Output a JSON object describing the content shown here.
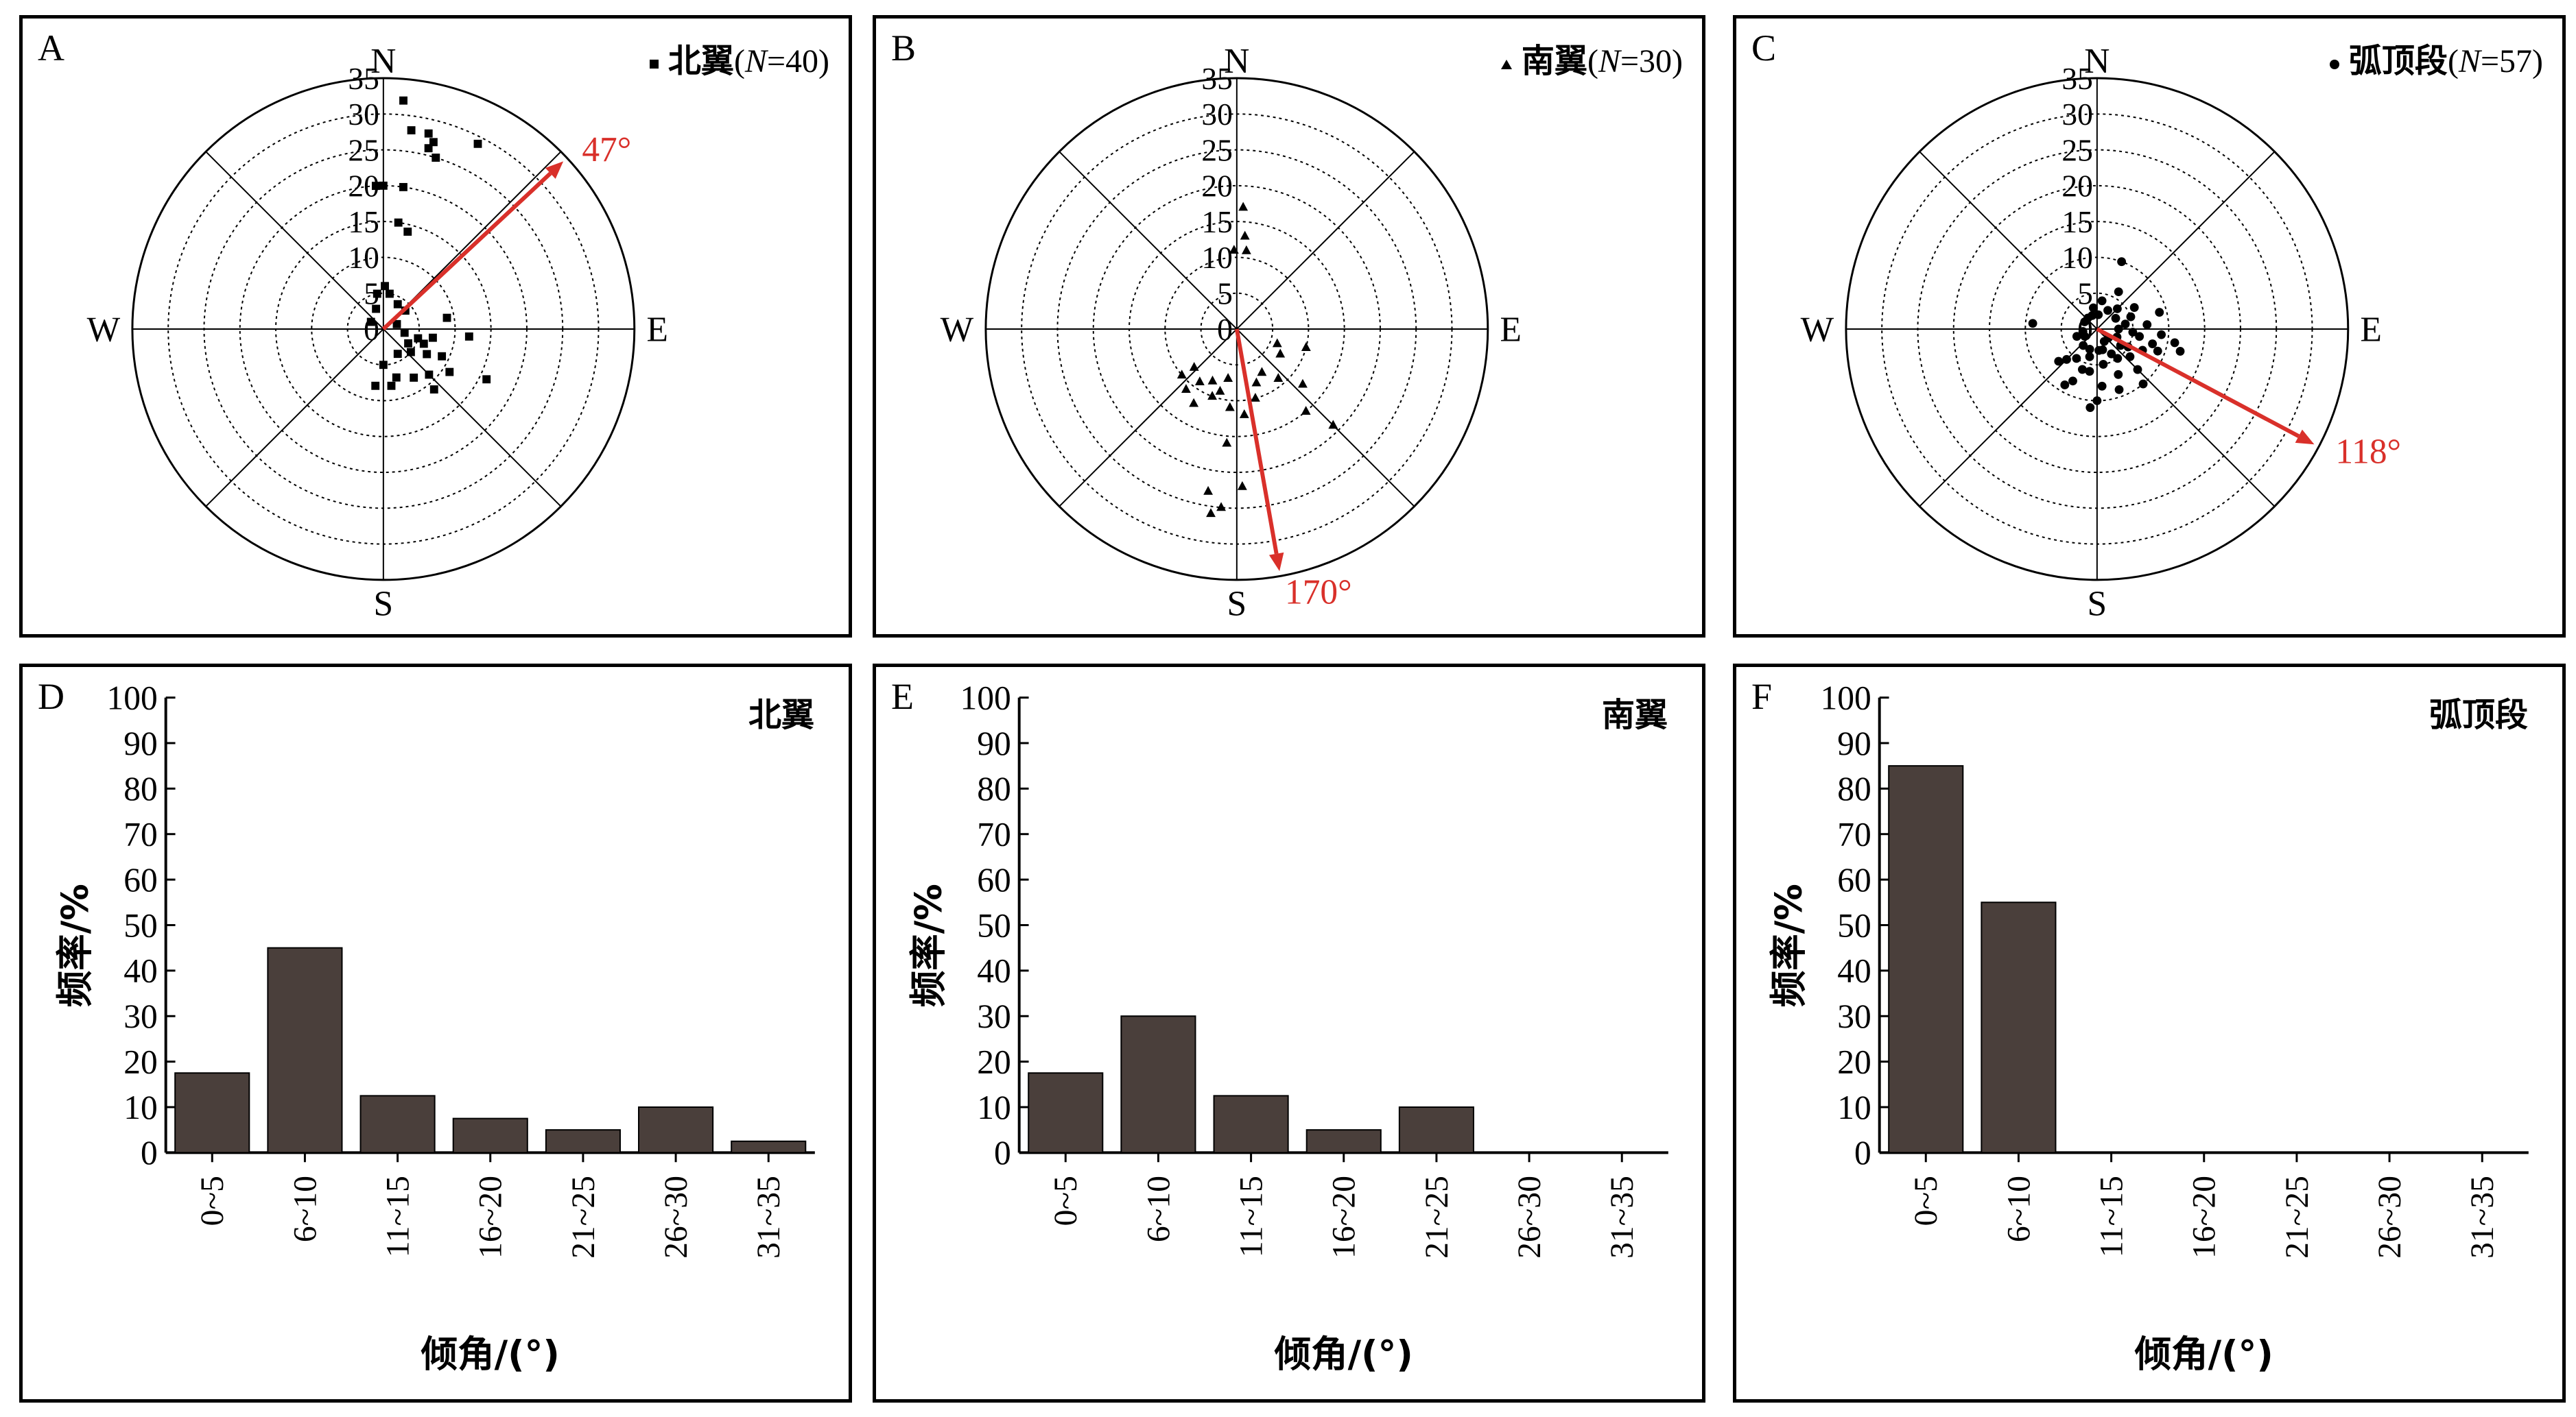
{
  "chart_data": [
    {
      "id": "A",
      "type": "polar-scatter",
      "panel_label": "A",
      "legend": {
        "marker": "square",
        "text": "北翼",
        "n_label": "N",
        "n_value": "=40",
        "full": "北翼(N=40)"
      },
      "directions": [
        "N",
        "E",
        "S",
        "W"
      ],
      "radial_ticks": [
        0,
        5,
        10,
        15,
        20,
        25,
        30,
        35
      ],
      "rmax": 35,
      "mean_direction": {
        "azimuth": 47,
        "label": "47°",
        "length": 35
      },
      "points": [
        {
          "az": 5,
          "r": 32
        },
        {
          "az": 8,
          "r": 28
        },
        {
          "az": 13,
          "r": 28
        },
        {
          "az": 15,
          "r": 27
        },
        {
          "az": 14,
          "r": 26
        },
        {
          "az": 17,
          "r": 25
        },
        {
          "az": 27,
          "r": 29
        },
        {
          "az": 0,
          "r": 20
        },
        {
          "az": 357,
          "r": 20
        },
        {
          "az": 8,
          "r": 20
        },
        {
          "az": 8,
          "r": 15
        },
        {
          "az": 14,
          "r": 14
        },
        {
          "az": 2,
          "r": 6
        },
        {
          "az": 350,
          "r": 5
        },
        {
          "az": 10,
          "r": 5
        },
        {
          "az": 80,
          "r": 9
        },
        {
          "az": 30,
          "r": 4
        },
        {
          "az": 50,
          "r": 4
        },
        {
          "az": 340,
          "r": 3
        },
        {
          "az": 300,
          "r": 2
        },
        {
          "az": 100,
          "r": 3
        },
        {
          "az": 120,
          "r": 4
        },
        {
          "az": 110,
          "r": 6
        },
        {
          "az": 130,
          "r": 5
        },
        {
          "az": 150,
          "r": 4
        },
        {
          "az": 120,
          "r": 7
        },
        {
          "az": 115,
          "r": 9
        },
        {
          "az": 123,
          "r": 11
        },
        {
          "az": 135,
          "r": 9
        },
        {
          "az": 148,
          "r": 8
        },
        {
          "az": 140,
          "r": 11
        },
        {
          "az": 116,
          "r": 16
        },
        {
          "az": 180,
          "r": 5
        },
        {
          "az": 188,
          "r": 8
        },
        {
          "az": 172,
          "r": 8
        },
        {
          "az": 165,
          "r": 7
        },
        {
          "az": 100,
          "r": 7
        },
        {
          "az": 95,
          "r": 12
        },
        {
          "az": 105,
          "r": 5
        },
        {
          "az": 70,
          "r": 2
        }
      ]
    },
    {
      "id": "B",
      "type": "polar-scatter",
      "panel_label": "B",
      "legend": {
        "marker": "triangle",
        "text": "南翼",
        "n_label": "N",
        "n_value": "=30",
        "full": "南翼(N=30)"
      },
      "directions": [
        "N",
        "E",
        "S",
        "W"
      ],
      "radial_ticks": [
        0,
        5,
        10,
        15,
        20,
        25,
        30,
        35
      ],
      "rmax": 35,
      "mean_direction": {
        "azimuth": 170,
        "label": "170°",
        "length": 35
      },
      "points": [
        {
          "az": 3,
          "r": 17
        },
        {
          "az": 5,
          "r": 13
        },
        {
          "az": 7,
          "r": 11
        },
        {
          "az": 358,
          "r": 11
        },
        {
          "az": 230,
          "r": 10
        },
        {
          "az": 228,
          "r": 8
        },
        {
          "az": 215,
          "r": 9
        },
        {
          "az": 205,
          "r": 8
        },
        {
          "az": 200,
          "r": 10
        },
        {
          "az": 220,
          "r": 11
        },
        {
          "az": 210,
          "r": 12
        },
        {
          "az": 195,
          "r": 9
        },
        {
          "az": 185,
          "r": 11
        },
        {
          "az": 190,
          "r": 7
        },
        {
          "az": 175,
          "r": 12
        },
        {
          "az": 165,
          "r": 10
        },
        {
          "az": 160,
          "r": 8
        },
        {
          "az": 150,
          "r": 7
        },
        {
          "az": 140,
          "r": 9
        },
        {
          "az": 120,
          "r": 7
        },
        {
          "az": 110,
          "r": 6
        },
        {
          "az": 105,
          "r": 10
        },
        {
          "az": 130,
          "r": 12
        },
        {
          "az": 140,
          "r": 15
        },
        {
          "az": 135,
          "r": 19
        },
        {
          "az": 185,
          "r": 16
        },
        {
          "az": 190,
          "r": 23
        },
        {
          "az": 185,
          "r": 25
        },
        {
          "az": 188,
          "r": 26
        },
        {
          "az": 178,
          "r": 22
        }
      ]
    },
    {
      "id": "C",
      "type": "polar-scatter",
      "panel_label": "C",
      "legend": {
        "marker": "circle",
        "text": "弧顶段",
        "n_label": "N",
        "n_value": "=57",
        "full": "弧顶段(N=57)"
      },
      "directions": [
        "N",
        "E",
        "S",
        "W"
      ],
      "radial_ticks": [
        0,
        5,
        10,
        15,
        20,
        25,
        30,
        35
      ],
      "rmax": 35,
      "mean_direction": {
        "azimuth": 118,
        "label": "118°",
        "length": 35
      },
      "points": [
        {
          "az": 20,
          "r": 10
        },
        {
          "az": 350,
          "r": 3
        },
        {
          "az": 10,
          "r": 4
        },
        {
          "az": 30,
          "r": 3
        },
        {
          "az": 45,
          "r": 4
        },
        {
          "az": 60,
          "r": 3
        },
        {
          "az": 70,
          "r": 5
        },
        {
          "az": 80,
          "r": 4
        },
        {
          "az": 90,
          "r": 3
        },
        {
          "az": 95,
          "r": 5
        },
        {
          "az": 100,
          "r": 6
        },
        {
          "az": 105,
          "r": 8
        },
        {
          "az": 110,
          "r": 9
        },
        {
          "az": 115,
          "r": 7
        },
        {
          "az": 120,
          "r": 5
        },
        {
          "az": 125,
          "r": 4
        },
        {
          "az": 130,
          "r": 6
        },
        {
          "az": 135,
          "r": 8
        },
        {
          "az": 140,
          "r": 10
        },
        {
          "az": 145,
          "r": 5
        },
        {
          "az": 150,
          "r": 4
        },
        {
          "az": 155,
          "r": 7
        },
        {
          "az": 160,
          "r": 9
        },
        {
          "az": 165,
          "r": 3
        },
        {
          "az": 170,
          "r": 5
        },
        {
          "az": 175,
          "r": 8
        },
        {
          "az": 180,
          "r": 10
        },
        {
          "az": 185,
          "r": 11
        },
        {
          "az": 190,
          "r": 6
        },
        {
          "az": 195,
          "r": 4
        },
        {
          "az": 200,
          "r": 3
        },
        {
          "az": 205,
          "r": 8
        },
        {
          "az": 210,
          "r": 9
        },
        {
          "az": 215,
          "r": 5
        },
        {
          "az": 220,
          "r": 3
        },
        {
          "az": 225,
          "r": 6
        },
        {
          "az": 230,
          "r": 7
        },
        {
          "az": 240,
          "r": 2
        },
        {
          "az": 250,
          "r": 3
        },
        {
          "az": 260,
          "r": 2
        },
        {
          "az": 275,
          "r": 9
        },
        {
          "az": 300,
          "r": 2
        },
        {
          "az": 320,
          "r": 2
        },
        {
          "az": 340,
          "r": 2
        },
        {
          "az": 85,
          "r": 7
        },
        {
          "az": 75,
          "r": 9
        },
        {
          "az": 95,
          "r": 9
        },
        {
          "az": 100,
          "r": 11
        },
        {
          "az": 105,
          "r": 12
        },
        {
          "az": 112,
          "r": 3
        },
        {
          "az": 128,
          "r": 2
        },
        {
          "az": 150,
          "r": 2
        },
        {
          "az": 175,
          "r": 3
        },
        {
          "az": 200,
          "r": 6
        },
        {
          "az": 60,
          "r": 6
        },
        {
          "az": 30,
          "r": 6
        },
        {
          "az": 5,
          "r": 2
        }
      ]
    },
    {
      "id": "D",
      "type": "bar",
      "panel_label": "D",
      "legend_text": "北翼",
      "categories": [
        "0~5",
        "6~10",
        "11~15",
        "16~20",
        "21~25",
        "26~30",
        "31~35"
      ],
      "values": [
        17.5,
        45,
        12.5,
        7.5,
        5,
        10,
        2.5
      ],
      "ylabel": "频率/%",
      "xlabel": "倾角/(°)",
      "ylim": [
        0,
        100
      ],
      "yticks": [
        0,
        10,
        20,
        30,
        40,
        50,
        60,
        70,
        80,
        90,
        100
      ],
      "bar_color": "#4a3f3b"
    },
    {
      "id": "E",
      "type": "bar",
      "panel_label": "E",
      "legend_text": "南翼",
      "categories": [
        "0~5",
        "6~10",
        "11~15",
        "16~20",
        "21~25",
        "26~30",
        "31~35"
      ],
      "values": [
        17.5,
        30,
        12.5,
        5,
        10,
        0,
        0
      ],
      "ylabel": "频率/%",
      "xlabel": "倾角/(°)",
      "ylim": [
        0,
        100
      ],
      "yticks": [
        0,
        10,
        20,
        30,
        40,
        50,
        60,
        70,
        80,
        90,
        100
      ],
      "bar_color": "#4a3f3b"
    },
    {
      "id": "F",
      "type": "bar",
      "panel_label": "F",
      "legend_text": "弧顶段",
      "categories": [
        "0~5",
        "6~10",
        "11~15",
        "16~20",
        "21~25",
        "26~30",
        "31~35"
      ],
      "values": [
        85,
        55,
        0,
        0,
        0,
        0,
        0
      ],
      "ylabel": "频率/%",
      "xlabel": "倾角/(°)",
      "ylim": [
        0,
        100
      ],
      "yticks": [
        0,
        10,
        20,
        30,
        40,
        50,
        60,
        70,
        80,
        90,
        100
      ],
      "bar_color": "#4a3f3b"
    }
  ],
  "colors": {
    "arrow": "#d9302a",
    "axis": "#000000",
    "ring": "#000000"
  }
}
